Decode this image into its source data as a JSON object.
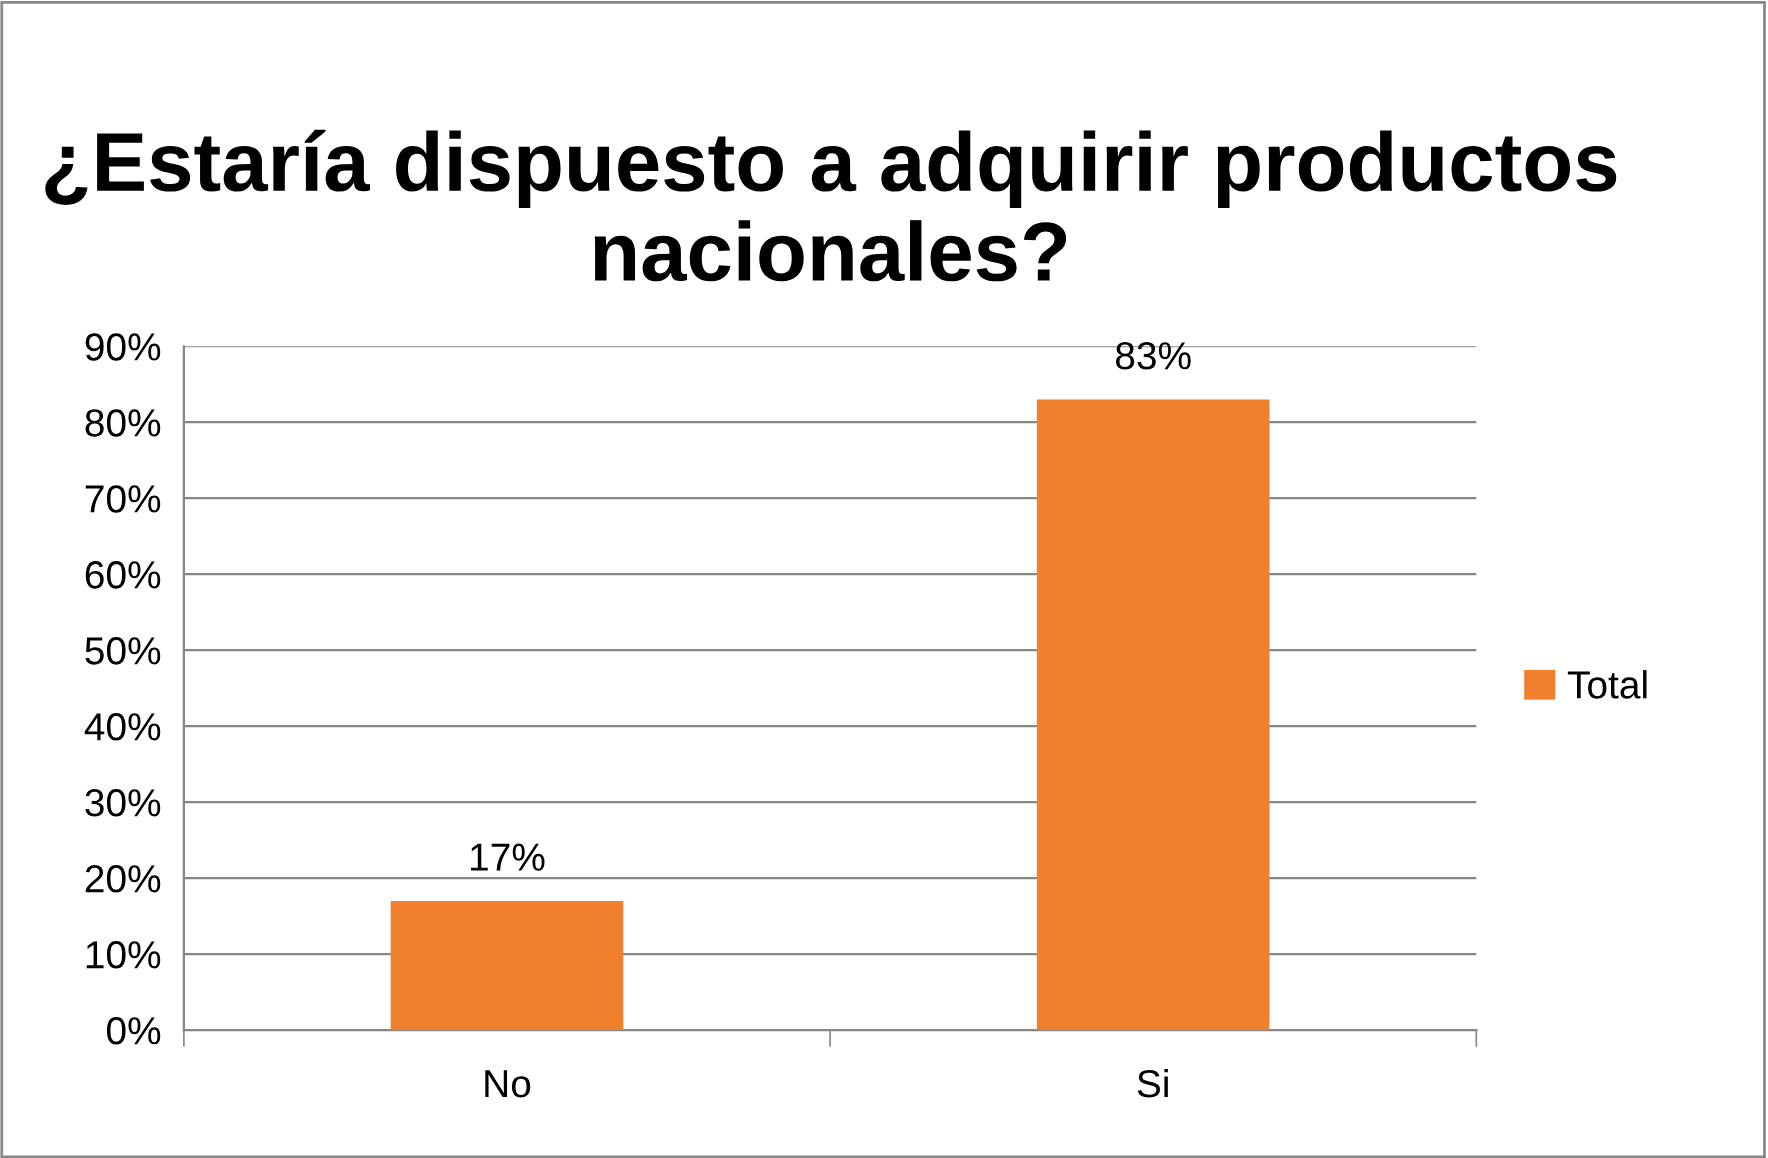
{
  "chart_data": {
    "type": "bar",
    "title": "¿Estaría dispuesto a adquirir productos nacionales?",
    "categories": [
      "No",
      "Si"
    ],
    "series": [
      {
        "name": "Total",
        "color": "#f0802e",
        "values": [
          17,
          83
        ],
        "value_labels": [
          "17%",
          "83%"
        ]
      }
    ],
    "ylim": [
      0,
      90
    ],
    "yticks": [
      {
        "value": 0,
        "label": "0%"
      },
      {
        "value": 10,
        "label": "10%"
      },
      {
        "value": 20,
        "label": "20%"
      },
      {
        "value": 30,
        "label": "30%"
      },
      {
        "value": 40,
        "label": "40%"
      },
      {
        "value": 50,
        "label": "50%"
      },
      {
        "value": 60,
        "label": "60%"
      },
      {
        "value": 70,
        "label": "70%"
      },
      {
        "value": 80,
        "label": "80%"
      },
      {
        "value": 90,
        "label": "90%"
      }
    ],
    "grid": "y",
    "legend": "right"
  }
}
